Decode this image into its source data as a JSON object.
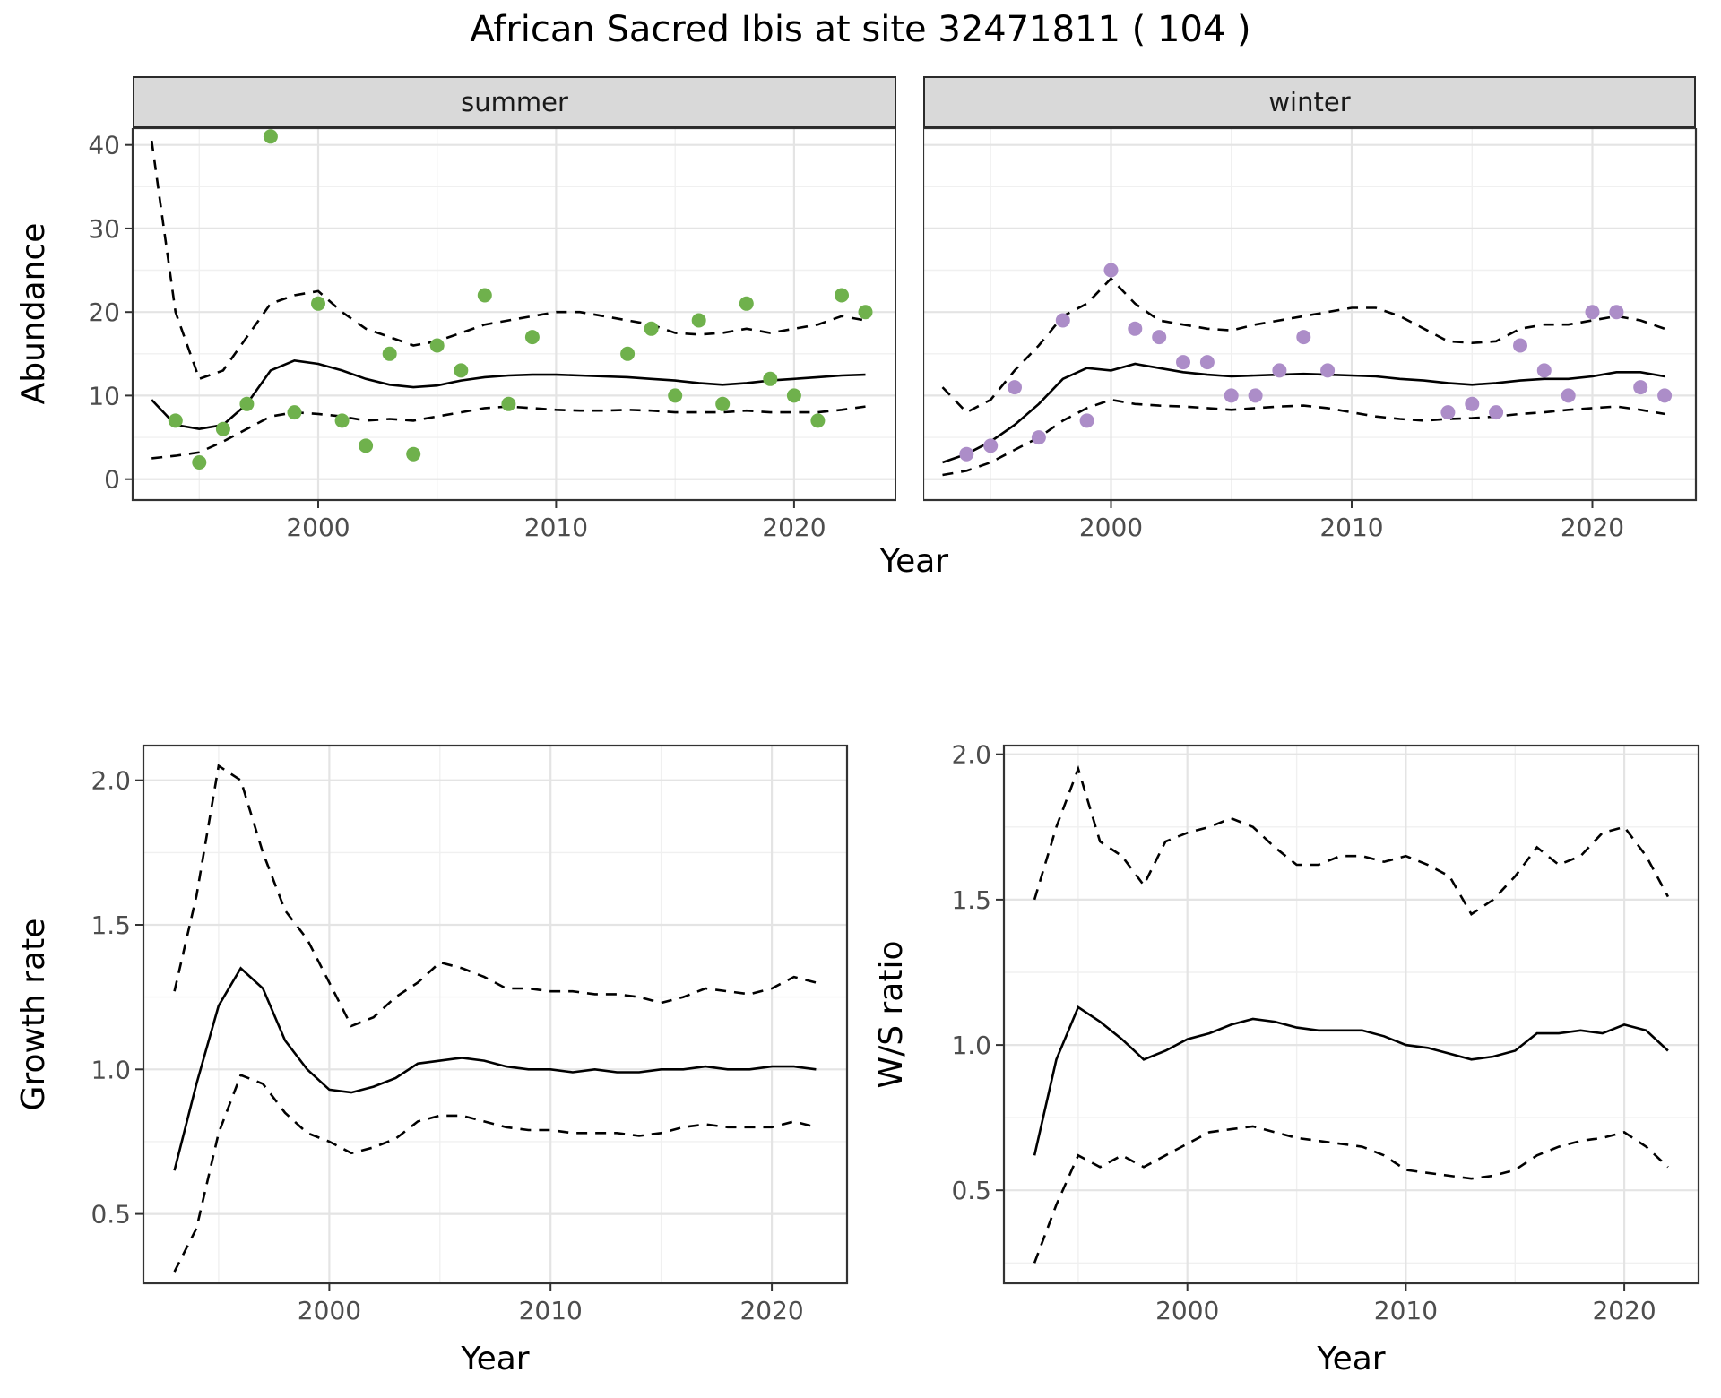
{
  "title": "African Sacred Ibis at site 32471811 ( 104 )",
  "top": {
    "xlabel": "Year",
    "ylabel": "Abundance",
    "facets": [
      {
        "label": "summer"
      },
      {
        "label": "winter"
      }
    ]
  },
  "growth": {
    "xlabel": "Year",
    "ylabel": "Growth rate"
  },
  "ws": {
    "xlabel": "Year",
    "ylabel": "W/S ratio"
  },
  "colors": {
    "summer_point": "#6FB14C",
    "winter_point": "#AC8DC8",
    "line": "#000000",
    "panel_bg": "#FFFFFF",
    "panel_border": "#333333",
    "grid_major": "#E4E4E4",
    "grid_minor": "#F0F0F0",
    "strip_bg": "#D9D9D9",
    "tick_text": "#4D4D4D"
  },
  "chart_data": [
    {
      "id": "abundance-summer",
      "type": "scatter",
      "facet": "summer",
      "xlabel": "Year",
      "ylabel": "Abundance",
      "xlim": [
        1992.2,
        2024.3
      ],
      "ylim": [
        -2.5,
        42
      ],
      "xticks": [
        2000,
        2010,
        2020
      ],
      "xtick_labels": [
        "2000",
        "2010",
        "2020"
      ],
      "yticks": [
        0,
        10,
        20,
        30,
        40
      ],
      "ytick_labels": [
        "0",
        "10",
        "20",
        "30",
        "40"
      ],
      "point_color": "#6FB14C",
      "points": [
        [
          1994,
          7
        ],
        [
          1995,
          2
        ],
        [
          1996,
          6
        ],
        [
          1997,
          9
        ],
        [
          1998,
          41
        ],
        [
          1999,
          8
        ],
        [
          2000,
          21
        ],
        [
          2001,
          7
        ],
        [
          2002,
          4
        ],
        [
          2003,
          15
        ],
        [
          2004,
          3
        ],
        [
          2005,
          16
        ],
        [
          2006,
          13
        ],
        [
          2007,
          22
        ],
        [
          2008,
          9
        ],
        [
          2009,
          17
        ],
        [
          2013,
          15
        ],
        [
          2014,
          18
        ],
        [
          2015,
          10
        ],
        [
          2016,
          19
        ],
        [
          2017,
          9
        ],
        [
          2018,
          21
        ],
        [
          2019,
          12
        ],
        [
          2020,
          10
        ],
        [
          2021,
          7
        ],
        [
          2022,
          22
        ],
        [
          2023,
          20
        ]
      ],
      "lines": [
        {
          "name": "mean",
          "style": "solid",
          "start_year": 1993,
          "values": [
            9.5,
            6.5,
            6.0,
            6.5,
            9.0,
            13.0,
            14.2,
            13.8,
            13.0,
            12.0,
            11.3,
            11.0,
            11.2,
            11.8,
            12.2,
            12.4,
            12.5,
            12.5,
            12.4,
            12.3,
            12.2,
            12.0,
            11.8,
            11.5,
            11.3,
            11.5,
            11.8,
            12.0,
            12.2,
            12.4,
            12.5
          ]
        },
        {
          "name": "upper95",
          "style": "dashed",
          "start_year": 1993,
          "values": [
            40.5,
            20.0,
            12.0,
            13.0,
            17.0,
            21.0,
            22.0,
            22.5,
            20.0,
            18.0,
            17.0,
            16.0,
            16.5,
            17.5,
            18.5,
            19.0,
            19.5,
            20.0,
            20.0,
            19.5,
            19.0,
            18.5,
            17.5,
            17.3,
            17.5,
            18.0,
            17.5,
            18.0,
            18.5,
            19.5,
            19.0
          ]
        },
        {
          "name": "lower95",
          "style": "dashed",
          "start_year": 1993,
          "values": [
            2.5,
            2.8,
            3.2,
            4.5,
            6.0,
            7.5,
            8.0,
            7.8,
            7.5,
            7.0,
            7.2,
            7.0,
            7.5,
            8.0,
            8.5,
            8.7,
            8.5,
            8.3,
            8.2,
            8.2,
            8.3,
            8.2,
            8.0,
            8.0,
            8.0,
            8.2,
            8.0,
            8.0,
            8.0,
            8.3,
            8.7
          ]
        }
      ]
    },
    {
      "id": "abundance-winter",
      "type": "scatter",
      "facet": "winter",
      "xlabel": "Year",
      "ylabel": "Abundance",
      "xlim": [
        1992.2,
        2024.3
      ],
      "ylim": [
        -2.5,
        42
      ],
      "xticks": [
        2000,
        2010,
        2020
      ],
      "xtick_labels": [
        "2000",
        "2010",
        "2020"
      ],
      "yticks": [
        0,
        10,
        20,
        30,
        40
      ],
      "ytick_labels": [
        "0",
        "10",
        "20",
        "30",
        "40"
      ],
      "point_color": "#AC8DC8",
      "points": [
        [
          1994,
          3
        ],
        [
          1995,
          4
        ],
        [
          1996,
          11
        ],
        [
          1997,
          5
        ],
        [
          1998,
          19
        ],
        [
          1999,
          7
        ],
        [
          2000,
          25
        ],
        [
          2001,
          18
        ],
        [
          2002,
          17
        ],
        [
          2003,
          14
        ],
        [
          2004,
          14
        ],
        [
          2005,
          10
        ],
        [
          2006,
          10
        ],
        [
          2007,
          13
        ],
        [
          2008,
          17
        ],
        [
          2009,
          13
        ],
        [
          2014,
          8
        ],
        [
          2015,
          9
        ],
        [
          2016,
          8
        ],
        [
          2017,
          16
        ],
        [
          2018,
          13
        ],
        [
          2019,
          10
        ],
        [
          2020,
          20
        ],
        [
          2021,
          20
        ],
        [
          2022,
          11
        ],
        [
          2023,
          10
        ]
      ],
      "lines": [
        {
          "name": "mean",
          "style": "solid",
          "start_year": 1993,
          "values": [
            2.0,
            3.0,
            4.5,
            6.5,
            9.0,
            12.0,
            13.3,
            13.0,
            13.8,
            13.3,
            12.8,
            12.5,
            12.3,
            12.4,
            12.5,
            12.6,
            12.5,
            12.4,
            12.3,
            12.0,
            11.8,
            11.5,
            11.3,
            11.5,
            11.8,
            12.0,
            12.0,
            12.3,
            12.8,
            12.8,
            12.3
          ]
        },
        {
          "name": "upper95",
          "style": "dashed",
          "start_year": 1993,
          "values": [
            11.0,
            8.0,
            9.5,
            13.0,
            16.0,
            19.5,
            21.0,
            24.0,
            21.0,
            19.0,
            18.5,
            18.0,
            17.8,
            18.5,
            19.0,
            19.5,
            20.0,
            20.5,
            20.5,
            19.5,
            18.0,
            16.5,
            16.3,
            16.5,
            18.0,
            18.5,
            18.5,
            19.0,
            19.5,
            19.0,
            18.0
          ]
        },
        {
          "name": "lower95",
          "style": "dashed",
          "start_year": 1993,
          "values": [
            0.5,
            1.0,
            2.0,
            3.5,
            5.0,
            7.0,
            8.5,
            9.5,
            9.0,
            8.8,
            8.7,
            8.5,
            8.3,
            8.5,
            8.7,
            8.8,
            8.5,
            8.0,
            7.5,
            7.2,
            7.0,
            7.2,
            7.3,
            7.5,
            7.8,
            8.0,
            8.3,
            8.5,
            8.7,
            8.3,
            7.8
          ]
        }
      ]
    },
    {
      "id": "growth-rate",
      "type": "line",
      "xlabel": "Year",
      "ylabel": "Growth rate",
      "xlim": [
        1991.6,
        2023.4
      ],
      "ylim": [
        0.26,
        2.12
      ],
      "xticks": [
        2000,
        2010,
        2020
      ],
      "xtick_labels": [
        "2000",
        "2010",
        "2020"
      ],
      "yticks": [
        0.5,
        1.0,
        1.5,
        2.0
      ],
      "ytick_labels": [
        "0.5",
        "1.0",
        "1.5",
        "2.0"
      ],
      "lines": [
        {
          "name": "mean",
          "style": "solid",
          "start_year": 1993,
          "values": [
            0.65,
            0.95,
            1.22,
            1.35,
            1.28,
            1.1,
            1.0,
            0.93,
            0.92,
            0.94,
            0.97,
            1.02,
            1.03,
            1.04,
            1.03,
            1.01,
            1.0,
            1.0,
            0.99,
            1.0,
            0.99,
            0.99,
            1.0,
            1.0,
            1.01,
            1.0,
            1.0,
            1.01,
            1.01,
            1.0
          ]
        },
        {
          "name": "upper95",
          "style": "dashed",
          "start_year": 1993,
          "values": [
            1.27,
            1.6,
            2.05,
            2.0,
            1.75,
            1.55,
            1.45,
            1.3,
            1.15,
            1.18,
            1.25,
            1.3,
            1.37,
            1.35,
            1.32,
            1.28,
            1.28,
            1.27,
            1.27,
            1.26,
            1.26,
            1.25,
            1.23,
            1.25,
            1.28,
            1.27,
            1.26,
            1.28,
            1.32,
            1.3
          ]
        },
        {
          "name": "lower95",
          "style": "dashed",
          "start_year": 1993,
          "values": [
            0.3,
            0.45,
            0.78,
            0.98,
            0.95,
            0.85,
            0.78,
            0.75,
            0.71,
            0.73,
            0.76,
            0.82,
            0.84,
            0.84,
            0.82,
            0.8,
            0.79,
            0.79,
            0.78,
            0.78,
            0.78,
            0.77,
            0.78,
            0.8,
            0.81,
            0.8,
            0.8,
            0.8,
            0.82,
            0.8
          ]
        }
      ]
    },
    {
      "id": "ws-ratio",
      "type": "line",
      "xlabel": "Year",
      "ylabel": "W/S ratio",
      "xlim": [
        1991.6,
        2023.4
      ],
      "ylim": [
        0.18,
        2.03
      ],
      "xticks": [
        2000,
        2010,
        2020
      ],
      "xtick_labels": [
        "2000",
        "2010",
        "2020"
      ],
      "yticks": [
        0.5,
        1.0,
        1.5,
        2.0
      ],
      "ytick_labels": [
        "0.5",
        "1.0",
        "1.5",
        "2.0"
      ],
      "lines": [
        {
          "name": "mean",
          "style": "solid",
          "start_year": 1993,
          "values": [
            0.62,
            0.95,
            1.13,
            1.08,
            1.02,
            0.95,
            0.98,
            1.02,
            1.04,
            1.07,
            1.09,
            1.08,
            1.06,
            1.05,
            1.05,
            1.05,
            1.03,
            1.0,
            0.99,
            0.97,
            0.95,
            0.96,
            0.98,
            1.04,
            1.04,
            1.05,
            1.04,
            1.07,
            1.05,
            0.98
          ]
        },
        {
          "name": "upper95",
          "style": "dashed",
          "start_year": 1993,
          "values": [
            1.5,
            1.75,
            1.95,
            1.7,
            1.65,
            1.55,
            1.7,
            1.73,
            1.75,
            1.78,
            1.75,
            1.68,
            1.62,
            1.62,
            1.65,
            1.65,
            1.63,
            1.65,
            1.62,
            1.58,
            1.45,
            1.5,
            1.58,
            1.68,
            1.62,
            1.65,
            1.73,
            1.75,
            1.65,
            1.51
          ]
        },
        {
          "name": "lower95",
          "style": "dashed",
          "start_year": 1993,
          "values": [
            0.25,
            0.45,
            0.62,
            0.58,
            0.62,
            0.58,
            0.62,
            0.66,
            0.7,
            0.71,
            0.72,
            0.7,
            0.68,
            0.67,
            0.66,
            0.65,
            0.62,
            0.57,
            0.56,
            0.55,
            0.54,
            0.55,
            0.57,
            0.62,
            0.65,
            0.67,
            0.68,
            0.7,
            0.65,
            0.58
          ]
        }
      ]
    }
  ]
}
